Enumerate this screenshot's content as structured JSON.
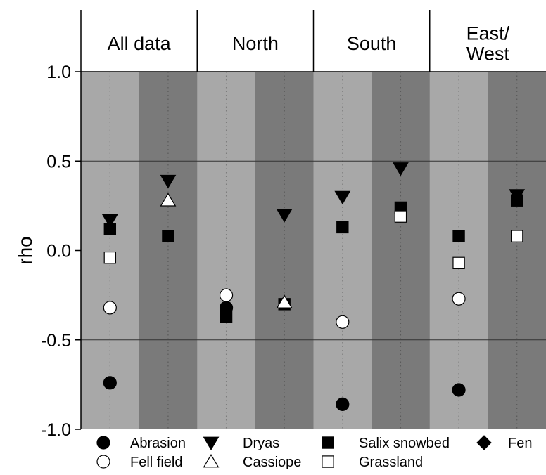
{
  "chart_data": {
    "type": "scatter",
    "ylabel": "rho",
    "ylim": [
      -1.0,
      1.0
    ],
    "yticks": [
      {
        "value": 1.0,
        "label": "1.0"
      },
      {
        "value": 0.5,
        "label": "0.5"
      },
      {
        "value": 0.0,
        "label": "0.0"
      },
      {
        "value": -0.5,
        "label": "-0.5"
      },
      {
        "value": -1.0,
        "label": "-1.0"
      }
    ],
    "panels": [
      {
        "label_lines": [
          "All data"
        ]
      },
      {
        "label_lines": [
          "North"
        ]
      },
      {
        "label_lines": [
          "South"
        ]
      },
      {
        "label_lines": [
          "East/",
          "West"
        ]
      }
    ],
    "column_shades": [
      "#a8a8a8",
      "#7a7a7a"
    ],
    "gridlines": [
      0.5,
      -0.5
    ],
    "legend": [
      {
        "name": "Abrasion",
        "marker": "circle",
        "fill": "black"
      },
      {
        "name": "Dryas",
        "marker": "triangle-down",
        "fill": "black"
      },
      {
        "name": "Salix snowbed",
        "marker": "square",
        "fill": "black"
      },
      {
        "name": "Fen",
        "marker": "diamond",
        "fill": "black"
      },
      {
        "name": "Fell field",
        "marker": "circle",
        "fill": "white"
      },
      {
        "name": "Cassiope",
        "marker": "triangle-up",
        "fill": "white"
      },
      {
        "name": "Grassland",
        "marker": "square",
        "fill": "white"
      }
    ],
    "points": [
      {
        "series": "Abrasion",
        "panel": 0,
        "column": 0,
        "y": -0.74
      },
      {
        "series": "Fell field",
        "panel": 0,
        "column": 0,
        "y": -0.32
      },
      {
        "series": "Grassland",
        "panel": 0,
        "column": 0,
        "y": -0.04
      },
      {
        "series": "Salix snowbed",
        "panel": 0,
        "column": 0,
        "y": 0.12
      },
      {
        "series": "Dryas",
        "panel": 0,
        "column": 0,
        "y": 0.17
      },
      {
        "series": "Salix snowbed",
        "panel": 0,
        "column": 1,
        "y": 0.08
      },
      {
        "series": "Cassiope",
        "panel": 0,
        "column": 1,
        "y": 0.28
      },
      {
        "series": "Dryas",
        "panel": 0,
        "column": 1,
        "y": 0.39
      },
      {
        "series": "Abrasion",
        "panel": 1,
        "column": 0,
        "y": -0.32
      },
      {
        "series": "Fell field",
        "panel": 1,
        "column": 0,
        "y": -0.25
      },
      {
        "series": "Salix snowbed",
        "panel": 1,
        "column": 0,
        "y": -0.37
      },
      {
        "series": "Salix snowbed",
        "panel": 1,
        "column": 1,
        "y": -0.3
      },
      {
        "series": "Cassiope",
        "panel": 1,
        "column": 1,
        "y": -0.29
      },
      {
        "series": "Dryas",
        "panel": 1,
        "column": 1,
        "y": 0.2
      },
      {
        "series": "Abrasion",
        "panel": 2,
        "column": 0,
        "y": -0.86
      },
      {
        "series": "Fell field",
        "panel": 2,
        "column": 0,
        "y": -0.4
      },
      {
        "series": "Salix snowbed",
        "panel": 2,
        "column": 0,
        "y": 0.13
      },
      {
        "series": "Dryas",
        "panel": 2,
        "column": 0,
        "y": 0.3
      },
      {
        "series": "Dryas",
        "panel": 2,
        "column": 1,
        "y": 0.46
      },
      {
        "series": "Salix snowbed",
        "panel": 2,
        "column": 1,
        "y": 0.24
      },
      {
        "series": "Grassland",
        "panel": 2,
        "column": 1,
        "y": 0.19
      },
      {
        "series": "Abrasion",
        "panel": 3,
        "column": 0,
        "y": -0.78
      },
      {
        "series": "Fell field",
        "panel": 3,
        "column": 0,
        "y": -0.27
      },
      {
        "series": "Grassland",
        "panel": 3,
        "column": 0,
        "y": -0.07
      },
      {
        "series": "Salix snowbed",
        "panel": 3,
        "column": 0,
        "y": 0.08
      },
      {
        "series": "Dryas",
        "panel": 3,
        "column": 1,
        "y": 0.31
      },
      {
        "series": "Salix snowbed",
        "panel": 3,
        "column": 1,
        "y": 0.28
      },
      {
        "series": "Grassland",
        "panel": 3,
        "column": 1,
        "y": 0.08
      }
    ]
  }
}
